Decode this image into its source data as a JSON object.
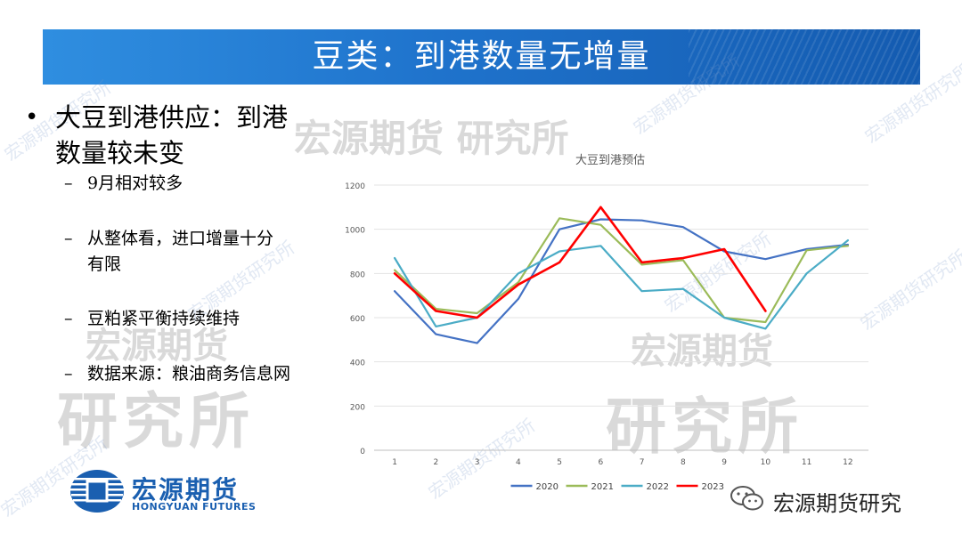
{
  "header": {
    "title": "豆类：到港数量无增量"
  },
  "bullets": {
    "main": [
      "大豆到港供应：到港",
      "数量较未变"
    ],
    "sub": [
      [
        "9月相对较多"
      ],
      [
        "从整体看，进口增量十分",
        "有限"
      ],
      [
        "豆粕紧平衡持续维持"
      ],
      [
        "数据来源：粮油商务信息网"
      ]
    ]
  },
  "watermarks": {
    "brand": "宏源期货",
    "dept": "研究所",
    "full": "宏源期货 研究所",
    "diag": "宏源期货研究所"
  },
  "logo": {
    "cn": "宏源期货",
    "en": "HONGYUAN FUTURES"
  },
  "wechat": {
    "label": "宏源期货研究"
  },
  "chart_data": {
    "type": "line",
    "title": "大豆到港预估",
    "xlabel": "",
    "ylabel": "",
    "x": [
      1,
      2,
      3,
      4,
      5,
      6,
      7,
      8,
      9,
      10,
      11,
      12
    ],
    "ylim": [
      0,
      1200
    ],
    "yticks": [
      0,
      200,
      400,
      600,
      800,
      1000,
      1200
    ],
    "grid": true,
    "legend": "bottom",
    "series": [
      {
        "name": "2020",
        "color": "#4472c4",
        "values": [
          720,
          525,
          485,
          685,
          1000,
          1045,
          1040,
          1010,
          900,
          865,
          910,
          930
        ]
      },
      {
        "name": "2021",
        "color": "#9bbb59",
        "values": [
          815,
          640,
          620,
          760,
          1050,
          1020,
          840,
          860,
          600,
          580,
          905,
          925
        ]
      },
      {
        "name": "2022",
        "color": "#4bacc6",
        "values": [
          870,
          560,
          600,
          800,
          900,
          925,
          720,
          730,
          600,
          550,
          800,
          950
        ]
      },
      {
        "name": "2023",
        "color": "#ff0000",
        "values": [
          800,
          630,
          600,
          750,
          850,
          1100,
          850,
          870,
          910,
          630,
          null,
          null
        ]
      }
    ]
  }
}
